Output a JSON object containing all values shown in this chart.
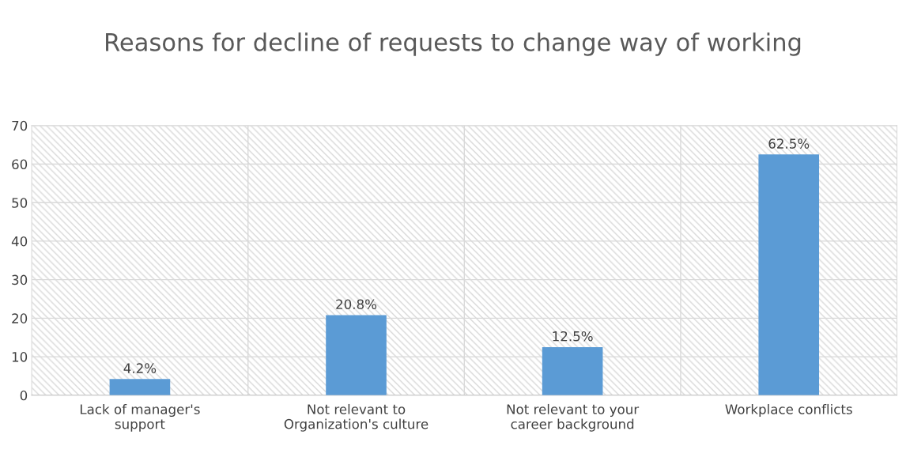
{
  "chart_data": {
    "type": "bar",
    "title": "Reasons for decline of requests to change way of working",
    "categories": [
      "Lack of manager's support",
      "Not relevant to Organization's culture",
      "Not relevant to your career background",
      "Workplace conflicts"
    ],
    "values": [
      4.2,
      20.8,
      12.5,
      62.5
    ],
    "value_labels": [
      "4.2%",
      "20.8%",
      "12.5%",
      "62.5%"
    ],
    "color": "#5b9bd5",
    "ylim": [
      0,
      70
    ],
    "yticks": [
      0,
      10,
      20,
      30,
      40,
      50,
      60,
      70
    ],
    "grid": true,
    "legend": false
  }
}
